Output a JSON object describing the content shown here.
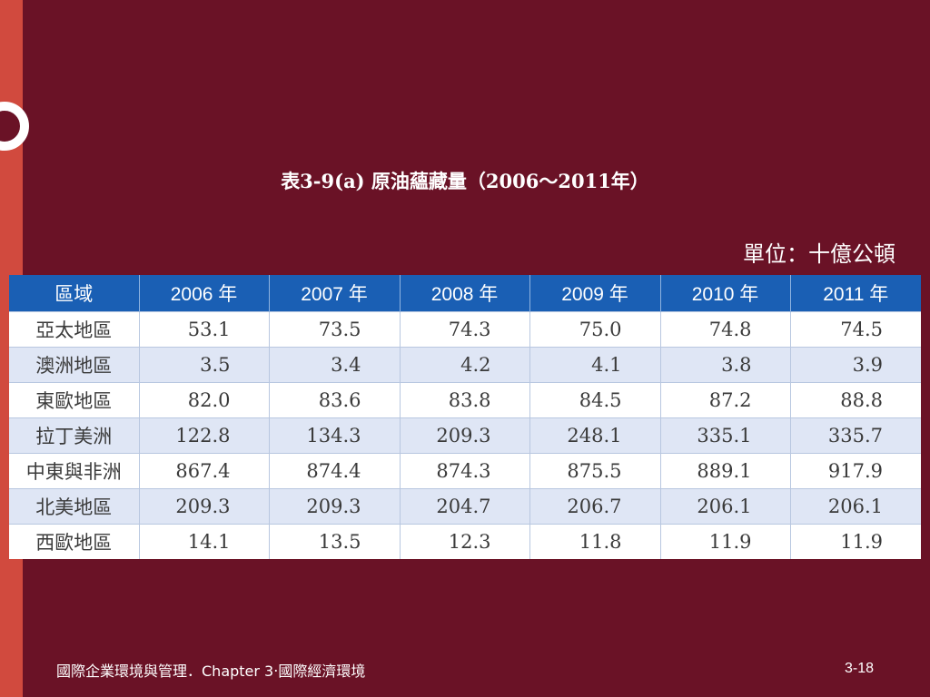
{
  "slide": {
    "title": "表3-9(a)   原油蘊藏量（2006～2011年）",
    "unit": "單位：十億公頓",
    "footer_left": "國際企業環境與管理．Chapter 3‧國際經濟環境",
    "page_number": "3-18"
  },
  "table": {
    "headers": [
      "區域",
      "2006 年",
      "2007 年",
      "2008 年",
      "2009 年",
      "2010 年",
      "2011 年"
    ],
    "rows": [
      [
        "亞太地區",
        "53.1",
        "73.5",
        "74.3",
        "75.0",
        "74.8",
        "74.5"
      ],
      [
        "澳洲地區",
        "3.5",
        "3.4",
        "4.2",
        "4.1",
        "3.8",
        "3.9"
      ],
      [
        "東歐地區",
        "82.0",
        "83.6",
        "83.8",
        "84.5",
        "87.2",
        "88.8"
      ],
      [
        "拉丁美洲",
        "122.8",
        "134.3",
        "209.3",
        "248.1",
        "335.1",
        "335.7"
      ],
      [
        "中東與非洲",
        "867.4",
        "874.4",
        "874.3",
        "875.5",
        "889.1",
        "917.9"
      ],
      [
        "北美地區",
        "209.3",
        "209.3",
        "204.7",
        "206.7",
        "206.1",
        "206.1"
      ],
      [
        "西歐地區",
        "14.1",
        "13.5",
        "12.3",
        "11.8",
        "11.9",
        "11.9"
      ]
    ]
  },
  "colors": {
    "background": "#6a1226",
    "stripe": "#d14a3e",
    "header": "#1a5fb4",
    "row_alt": "#dfe6f5"
  }
}
